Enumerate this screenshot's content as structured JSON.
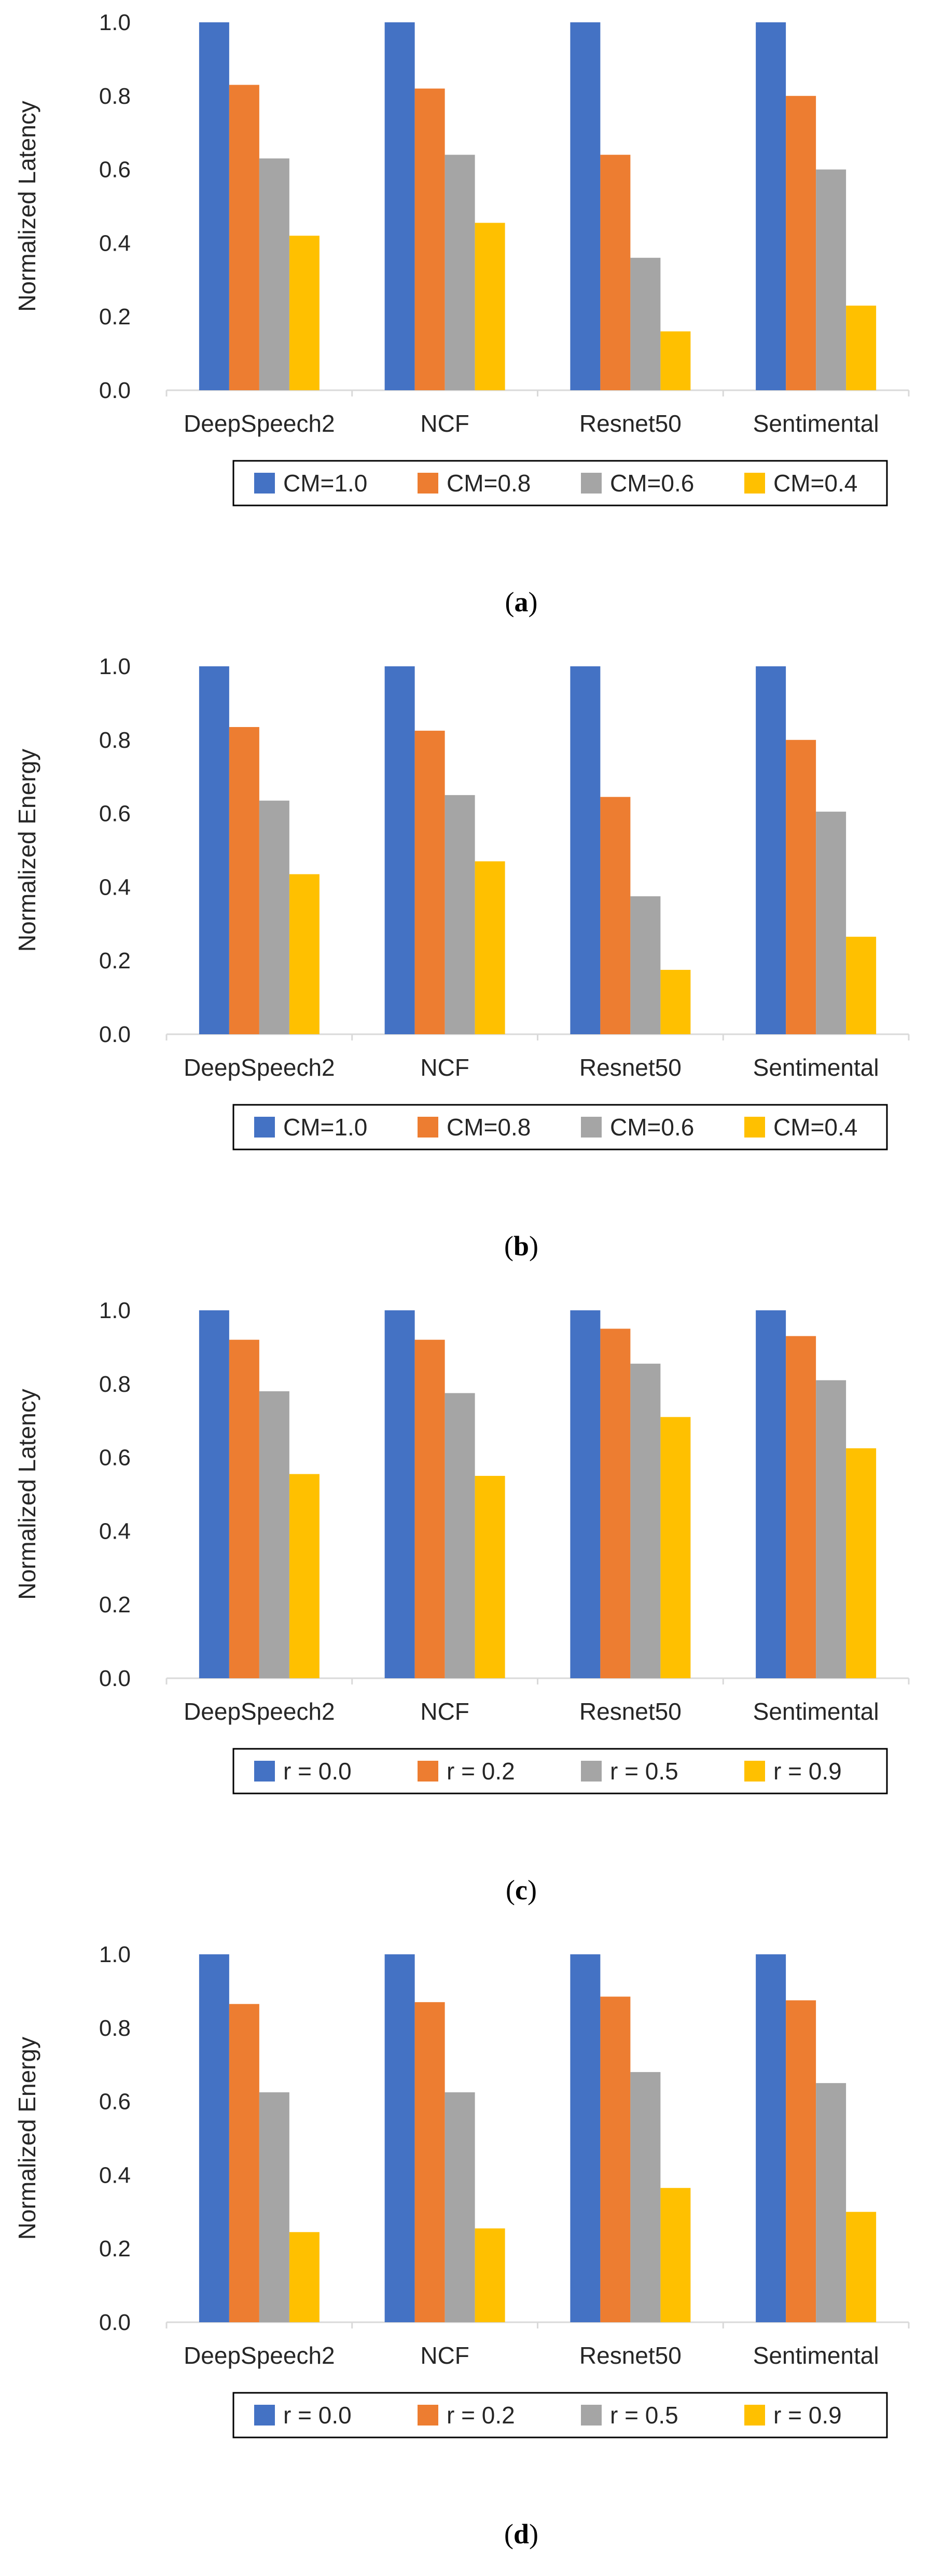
{
  "chart_data": [
    {
      "type": "bar",
      "caption": "(a)",
      "caption_letter": "a",
      "ylabel": "Normalized Latency",
      "xlabel": "",
      "ylim": [
        0,
        1.0
      ],
      "yticks": [
        "0.0",
        "0.2",
        "0.4",
        "0.6",
        "0.8",
        "1.0"
      ],
      "grid": false,
      "legend_position": "bottom",
      "categories": [
        "DeepSpeech2",
        "NCF",
        "Resnet50",
        "Sentimental"
      ],
      "series": [
        {
          "name": "CM=1.0",
          "color": "#4472C4",
          "values": [
            1.0,
            1.0,
            1.0,
            1.0
          ]
        },
        {
          "name": "CM=0.8",
          "color": "#ED7D31",
          "values": [
            0.83,
            0.82,
            0.64,
            0.8
          ]
        },
        {
          "name": "CM=0.6",
          "color": "#A5A5A5",
          "values": [
            0.63,
            0.64,
            0.36,
            0.6
          ]
        },
        {
          "name": "CM=0.4",
          "color": "#FFC000",
          "values": [
            0.42,
            0.455,
            0.16,
            0.23
          ]
        }
      ]
    },
    {
      "type": "bar",
      "caption": "(b)",
      "caption_letter": "b",
      "ylabel": "Normalized Energy",
      "xlabel": "",
      "ylim": [
        0,
        1.0
      ],
      "yticks": [
        "0.0",
        "0.2",
        "0.4",
        "0.6",
        "0.8",
        "1.0"
      ],
      "grid": false,
      "legend_position": "bottom",
      "categories": [
        "DeepSpeech2",
        "NCF",
        "Resnet50",
        "Sentimental"
      ],
      "series": [
        {
          "name": "CM=1.0",
          "color": "#4472C4",
          "values": [
            1.0,
            1.0,
            1.0,
            1.0
          ]
        },
        {
          "name": "CM=0.8",
          "color": "#ED7D31",
          "values": [
            0.835,
            0.825,
            0.645,
            0.8
          ]
        },
        {
          "name": "CM=0.6",
          "color": "#A5A5A5",
          "values": [
            0.635,
            0.65,
            0.375,
            0.605
          ]
        },
        {
          "name": "CM=0.4",
          "color": "#FFC000",
          "values": [
            0.435,
            0.47,
            0.175,
            0.265
          ]
        }
      ]
    },
    {
      "type": "bar",
      "caption": "(c)",
      "caption_letter": "c",
      "ylabel": "Normalized Latency",
      "xlabel": "",
      "ylim": [
        0,
        1.0
      ],
      "yticks": [
        "0.0",
        "0.2",
        "0.4",
        "0.6",
        "0.8",
        "1.0"
      ],
      "grid": false,
      "legend_position": "bottom",
      "categories": [
        "DeepSpeech2",
        "NCF",
        "Resnet50",
        "Sentimental"
      ],
      "series": [
        {
          "name": "r = 0.0",
          "color": "#4472C4",
          "values": [
            1.0,
            1.0,
            1.0,
            1.0
          ]
        },
        {
          "name": "r = 0.2",
          "color": "#ED7D31",
          "values": [
            0.92,
            0.92,
            0.95,
            0.93
          ]
        },
        {
          "name": "r = 0.5",
          "color": "#A5A5A5",
          "values": [
            0.78,
            0.775,
            0.855,
            0.81
          ]
        },
        {
          "name": "r = 0.9",
          "color": "#FFC000",
          "values": [
            0.555,
            0.55,
            0.71,
            0.625
          ]
        }
      ]
    },
    {
      "type": "bar",
      "caption": "(d)",
      "caption_letter": "d",
      "ylabel": "Normalized Energy",
      "xlabel": "",
      "ylim": [
        0,
        1.0
      ],
      "yticks": [
        "0.0",
        "0.2",
        "0.4",
        "0.6",
        "0.8",
        "1.0"
      ],
      "grid": false,
      "legend_position": "bottom",
      "categories": [
        "DeepSpeech2",
        "NCF",
        "Resnet50",
        "Sentimental"
      ],
      "series": [
        {
          "name": "r = 0.0",
          "color": "#4472C4",
          "values": [
            1.0,
            1.0,
            1.0,
            1.0
          ]
        },
        {
          "name": "r = 0.2",
          "color": "#ED7D31",
          "values": [
            0.865,
            0.87,
            0.885,
            0.875
          ]
        },
        {
          "name": "r = 0.5",
          "color": "#A5A5A5",
          "values": [
            0.625,
            0.625,
            0.68,
            0.65
          ]
        },
        {
          "name": "r = 0.9",
          "color": "#FFC000",
          "values": [
            0.245,
            0.255,
            0.365,
            0.3
          ]
        }
      ]
    }
  ]
}
